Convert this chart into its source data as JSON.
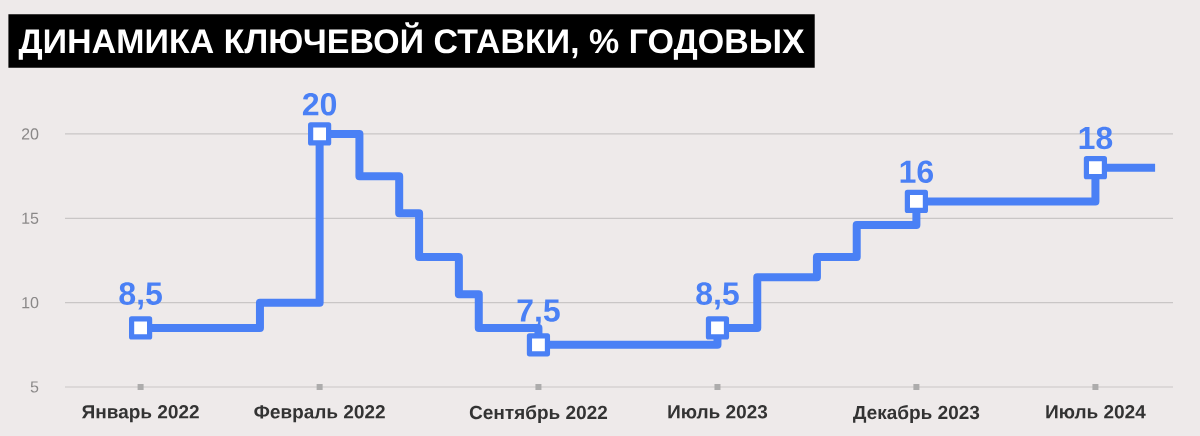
{
  "chart_data": {
    "type": "step",
    "title": "ДИНАМИКА КЛЮЧЕВОЙ СТАВКИ, % ГОДОВЫХ",
    "categories": [
      "Январь 2022",
      null,
      null,
      null,
      null,
      null,
      null,
      null,
      null,
      "Февраль 2022",
      null,
      null,
      null,
      null,
      null,
      null,
      null,
      null,
      null,
      null,
      "Сентябрь 2022",
      null,
      null,
      null,
      null,
      null,
      null,
      null,
      null,
      "Июль 2023",
      null,
      null,
      null,
      null,
      null,
      null,
      null,
      null,
      null,
      "Декабрь 2023",
      null,
      null,
      null,
      null,
      null,
      null,
      null,
      null,
      "Июль 2024",
      null,
      null,
      null
    ],
    "ylim": [
      5,
      20
    ],
    "yticks": [
      5,
      10,
      15,
      20
    ],
    "grid": "y",
    "series": [
      {
        "color": "#4a80f5",
        "values": [
          8.5,
          8.5,
          8.5,
          8.5,
          8.5,
          8.5,
          10,
          10,
          10,
          20,
          20,
          17.5,
          17.5,
          15.3,
          12.7,
          12.7,
          10.5,
          8.5,
          8.5,
          8.5,
          7.5,
          7.5,
          7.5,
          7.5,
          7.5,
          7.5,
          7.5,
          7.5,
          7.5,
          8.5,
          8.5,
          11.5,
          11.5,
          11.5,
          12.7,
          12.7,
          14.6,
          14.6,
          14.6,
          16,
          16,
          16,
          16,
          16,
          16,
          16,
          16,
          16,
          18,
          18,
          18,
          18
        ]
      },
      {
        "type": "scatter",
        "marker": "square",
        "color": "#4a80f5",
        "values": [
          8.5,
          null,
          null,
          null,
          null,
          null,
          null,
          null,
          null,
          20,
          null,
          null,
          null,
          null,
          null,
          null,
          null,
          null,
          null,
          null,
          7.5,
          null,
          null,
          null,
          null,
          null,
          null,
          null,
          null,
          8.5,
          null,
          null,
          null,
          null,
          null,
          null,
          null,
          null,
          null,
          16,
          null,
          null,
          null,
          null,
          null,
          null,
          null,
          null,
          18,
          null,
          null,
          null
        ],
        "value_labels": [
          "8,5",
          null,
          null,
          null,
          null,
          null,
          null,
          null,
          null,
          "20",
          null,
          null,
          null,
          null,
          null,
          null,
          null,
          null,
          null,
          null,
          "7,5",
          null,
          null,
          null,
          null,
          null,
          null,
          null,
          null,
          "8,5",
          null,
          null,
          null,
          null,
          null,
          null,
          null,
          null,
          null,
          "16",
          null,
          null,
          null,
          null,
          null,
          null,
          null,
          null,
          "18",
          null,
          null,
          null
        ]
      }
    ]
  }
}
